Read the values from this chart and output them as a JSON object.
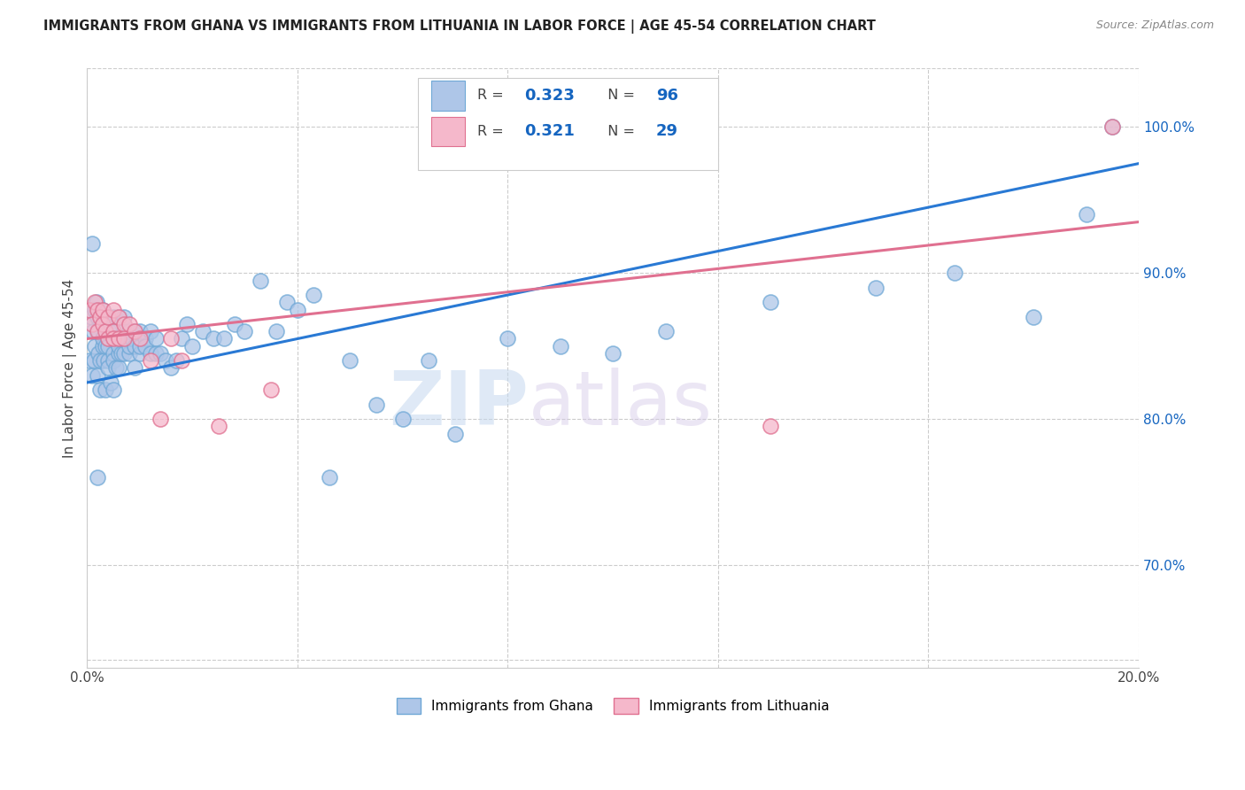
{
  "title": "IMMIGRANTS FROM GHANA VS IMMIGRANTS FROM LITHUANIA IN LABOR FORCE | AGE 45-54 CORRELATION CHART",
  "source_text": "Source: ZipAtlas.com",
  "ylabel": "In Labor Force | Age 45-54",
  "xlim": [
    0.0,
    0.2
  ],
  "ylim": [
    0.63,
    1.04
  ],
  "xtick_positions": [
    0.0,
    0.04,
    0.08,
    0.12,
    0.16,
    0.2
  ],
  "xtick_labels": [
    "0.0%",
    "",
    "",
    "",
    "",
    "20.0%"
  ],
  "ytick_vals_right": [
    0.7,
    0.8,
    0.9,
    1.0
  ],
  "ytick_labels_right": [
    "70.0%",
    "80.0%",
    "90.0%",
    "100.0%"
  ],
  "ghana_color": "#aec6e8",
  "ghana_edge_color": "#6fa8d6",
  "lithuania_color": "#f5b8cb",
  "lithuania_edge_color": "#e07090",
  "ghana_R": 0.323,
  "ghana_N": 96,
  "lithuania_R": 0.321,
  "lithuania_N": 29,
  "legend_R_color": "#1565c0",
  "ghana_line_color": "#2979d4",
  "lithuania_line_color": "#e07090",
  "watermark_zip": "ZIP",
  "watermark_atlas": "atlas",
  "ghana_line_x0": 0.0,
  "ghana_line_y0": 0.825,
  "ghana_line_x1": 0.2,
  "ghana_line_y1": 0.975,
  "lithuania_line_x0": 0.0,
  "lithuania_line_y0": 0.855,
  "lithuania_line_x1": 0.2,
  "lithuania_line_y1": 0.935,
  "ghana_scatter_x": [
    0.0005,
    0.0008,
    0.001,
    0.001,
    0.0012,
    0.0013,
    0.0015,
    0.0015,
    0.0018,
    0.002,
    0.002,
    0.002,
    0.0022,
    0.0022,
    0.0025,
    0.0025,
    0.0025,
    0.003,
    0.003,
    0.003,
    0.003,
    0.0032,
    0.0035,
    0.0035,
    0.004,
    0.004,
    0.004,
    0.004,
    0.004,
    0.0042,
    0.0045,
    0.005,
    0.005,
    0.005,
    0.005,
    0.005,
    0.0055,
    0.006,
    0.006,
    0.006,
    0.006,
    0.006,
    0.0065,
    0.007,
    0.007,
    0.007,
    0.0075,
    0.008,
    0.008,
    0.008,
    0.0085,
    0.009,
    0.009,
    0.009,
    0.01,
    0.01,
    0.01,
    0.011,
    0.011,
    0.012,
    0.012,
    0.013,
    0.013,
    0.014,
    0.015,
    0.016,
    0.017,
    0.018,
    0.019,
    0.02,
    0.022,
    0.024,
    0.026,
    0.028,
    0.03,
    0.033,
    0.036,
    0.038,
    0.04,
    0.043,
    0.046,
    0.05,
    0.055,
    0.06,
    0.065,
    0.07,
    0.08,
    0.09,
    0.1,
    0.11,
    0.13,
    0.15,
    0.165,
    0.18,
    0.19,
    0.195
  ],
  "ghana_scatter_y": [
    0.84,
    0.87,
    0.92,
    0.83,
    0.86,
    0.84,
    0.875,
    0.85,
    0.88,
    0.76,
    0.83,
    0.87,
    0.845,
    0.86,
    0.82,
    0.84,
    0.87,
    0.85,
    0.865,
    0.875,
    0.855,
    0.84,
    0.82,
    0.85,
    0.855,
    0.84,
    0.87,
    0.85,
    0.835,
    0.86,
    0.825,
    0.82,
    0.845,
    0.86,
    0.84,
    0.87,
    0.835,
    0.835,
    0.855,
    0.87,
    0.845,
    0.85,
    0.845,
    0.845,
    0.86,
    0.87,
    0.855,
    0.845,
    0.86,
    0.85,
    0.855,
    0.835,
    0.85,
    0.86,
    0.845,
    0.86,
    0.85,
    0.855,
    0.85,
    0.845,
    0.86,
    0.845,
    0.855,
    0.845,
    0.84,
    0.835,
    0.84,
    0.855,
    0.865,
    0.85,
    0.86,
    0.855,
    0.855,
    0.865,
    0.86,
    0.895,
    0.86,
    0.88,
    0.875,
    0.885,
    0.76,
    0.84,
    0.81,
    0.8,
    0.84,
    0.79,
    0.855,
    0.85,
    0.845,
    0.86,
    0.88,
    0.89,
    0.9,
    0.87,
    0.94,
    1.0
  ],
  "lithuania_scatter_x": [
    0.0005,
    0.001,
    0.0015,
    0.002,
    0.002,
    0.0025,
    0.003,
    0.003,
    0.0035,
    0.004,
    0.004,
    0.005,
    0.005,
    0.005,
    0.006,
    0.006,
    0.007,
    0.007,
    0.008,
    0.009,
    0.01,
    0.012,
    0.014,
    0.016,
    0.018,
    0.025,
    0.035,
    0.13,
    0.195
  ],
  "lithuania_scatter_y": [
    0.875,
    0.865,
    0.88,
    0.875,
    0.86,
    0.87,
    0.875,
    0.865,
    0.86,
    0.87,
    0.855,
    0.875,
    0.86,
    0.855,
    0.87,
    0.855,
    0.865,
    0.855,
    0.865,
    0.86,
    0.855,
    0.84,
    0.8,
    0.855,
    0.84,
    0.795,
    0.82,
    0.795,
    1.0
  ]
}
